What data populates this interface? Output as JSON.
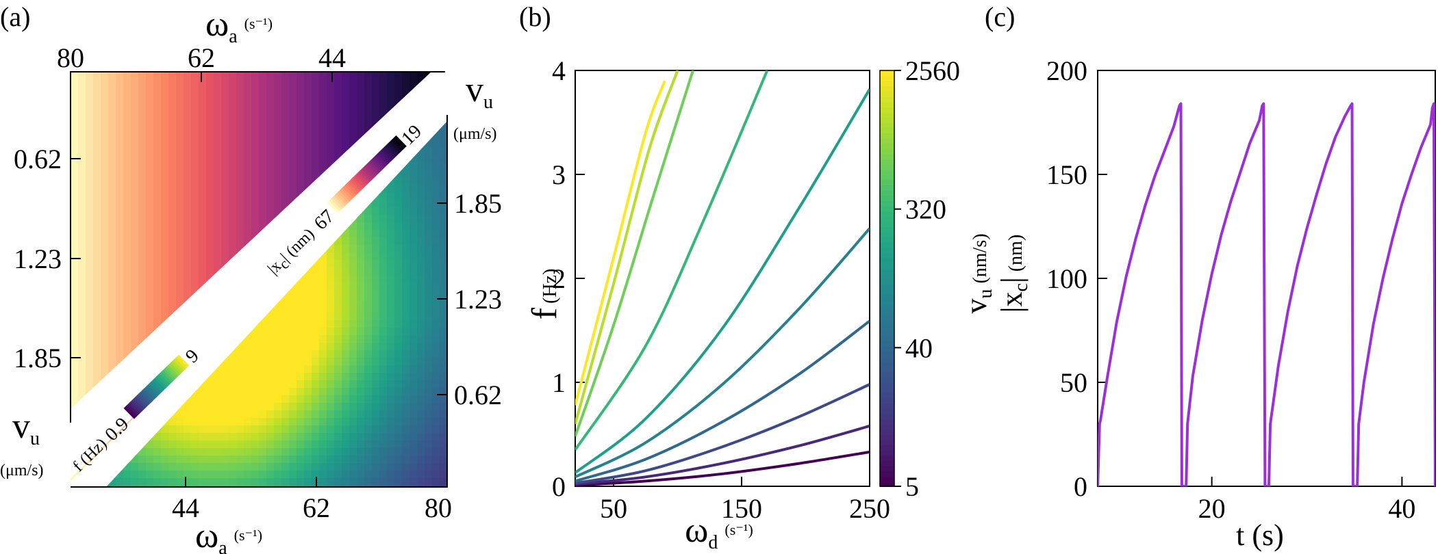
{
  "panels": {
    "a": "(a)",
    "b": "(b)",
    "c": "(c)"
  },
  "colormaps": {
    "magma": [
      "#fcfdbf",
      "#fec287",
      "#fb8761",
      "#e85362",
      "#b63679",
      "#822681",
      "#51127c",
      "#1d1147",
      "#000004"
    ],
    "viridis": [
      "#440154",
      "#482878",
      "#3e4989",
      "#31688e",
      "#26828e",
      "#1f9e89",
      "#35b779",
      "#6ece58",
      "#b5de2b",
      "#fde725"
    ]
  },
  "chart_data": [
    {
      "id": "a",
      "type": "heatmap",
      "top_axis": {
        "symbol": "ω",
        "subscript": "a",
        "unit": "(s⁻¹)",
        "ticks": [
          "80",
          "62",
          "44"
        ]
      },
      "left_axis": {
        "symbol": "v",
        "subscript": "u",
        "unit": "(μm/s)",
        "ticks": [
          "0.62",
          "1.23",
          "1.85"
        ]
      },
      "bottom_axis": {
        "symbol": "ω",
        "subscript": "a",
        "unit": "(s⁻¹)",
        "ticks": [
          "44",
          "62",
          "80"
        ]
      },
      "right_axis": {
        "symbol": "v",
        "subscript": "u",
        "unit": "(μm/s)",
        "ticks": [
          "1.85",
          "1.23",
          "0.62"
        ]
      },
      "upper_triangle": {
        "quantity": "|xc|",
        "colormap": "magma",
        "colorbar_label": "|x",
        "colorbar_label_sub": "c",
        "colorbar_label_rest": "| (nm)",
        "range": [
          "67",
          "19"
        ]
      },
      "lower_triangle": {
        "quantity": "f",
        "colormap": "viridis",
        "colorbar_label": "f (Hz)",
        "range": [
          "0.9",
          "9"
        ]
      }
    },
    {
      "id": "b",
      "type": "line",
      "xlabel": {
        "symbol": "ω",
        "subscript": "d",
        "unit": "(s⁻¹)"
      },
      "ylabel": {
        "symbol": "f",
        "unit": "(Hz)"
      },
      "xlim": [
        20,
        250
      ],
      "ylim": [
        0,
        4
      ],
      "xticks": [
        50,
        150,
        250
      ],
      "yticks": [
        0,
        1,
        2,
        3,
        4
      ],
      "colorbar": {
        "colormap": "viridis",
        "scale": "log",
        "ticks": [
          "5",
          "40",
          "320",
          "2560"
        ],
        "range": [
          5,
          2560
        ],
        "label_line1": {
          "symbol": "v",
          "subscript": "u",
          "unit": "(nm/s)"
        },
        "label_line2": {
          "symbol": "|x",
          "subscript": "c",
          "rest": "|",
          "unit": "(nm)"
        }
      },
      "series": [
        {
          "vu": 5,
          "x": [
            20,
            75,
            135,
            195,
            250
          ],
          "y": [
            0.01,
            0.05,
            0.12,
            0.22,
            0.33
          ]
        },
        {
          "vu": 10,
          "x": [
            20,
            75,
            135,
            195,
            250
          ],
          "y": [
            0.02,
            0.09,
            0.22,
            0.39,
            0.58
          ]
        },
        {
          "vu": 20,
          "x": [
            20,
            75,
            135,
            195,
            250
          ],
          "y": [
            0.03,
            0.15,
            0.38,
            0.67,
            0.98
          ]
        },
        {
          "vu": 40,
          "x": [
            20,
            75,
            135,
            195,
            250
          ],
          "y": [
            0.05,
            0.26,
            0.62,
            1.08,
            1.59
          ]
        },
        {
          "vu": 80,
          "x": [
            20,
            75,
            135,
            195,
            250
          ],
          "y": [
            0.09,
            0.42,
            0.98,
            1.71,
            2.48
          ]
        },
        {
          "vu": 160,
          "x": [
            20,
            75,
            135,
            195,
            250
          ],
          "y": [
            0.13,
            0.65,
            1.52,
            2.68,
            3.82
          ]
        },
        {
          "vu": 320,
          "x": [
            20,
            75,
            120,
            170
          ],
          "y": [
            0.35,
            1.35,
            2.55,
            4.0
          ]
        },
        {
          "vu": 640,
          "x": [
            20,
            50,
            80,
            112
          ],
          "y": [
            0.48,
            1.55,
            2.75,
            4.0
          ]
        },
        {
          "vu": 1280,
          "x": [
            20,
            50,
            78,
            100
          ],
          "y": [
            0.6,
            1.95,
            3.25,
            4.0
          ]
        },
        {
          "vu": 2560,
          "x": [
            20,
            50,
            75,
            90
          ],
          "y": [
            0.78,
            2.2,
            3.4,
            3.9
          ]
        }
      ]
    },
    {
      "id": "c",
      "type": "line",
      "xlabel": "t (s)",
      "ylabel": "",
      "xlim": [
        8,
        43.5
      ],
      "ylim": [
        0,
        200
      ],
      "xticks": [
        20,
        40
      ],
      "yticks": [
        0,
        50,
        100,
        150,
        200
      ],
      "series": [
        {
          "color": "#9b30d9",
          "x": [
            8.0,
            8.2,
            8.3,
            9,
            10,
            11,
            12,
            13,
            14,
            15,
            16,
            16.6,
            16.75,
            16.85,
            17.1,
            17.3,
            17.45,
            18,
            19,
            20,
            21,
            22,
            23,
            24,
            25,
            25.3,
            25.45,
            25.6,
            25.85,
            26.0,
            26.15,
            27,
            28,
            29,
            30,
            31,
            32,
            33,
            34,
            34.6,
            34.75,
            34.85,
            35.1,
            35.3,
            35.45,
            36,
            37,
            38,
            39,
            40,
            41,
            42,
            43,
            43.2,
            43.35,
            43.5
          ],
          "y": [
            0,
            30,
            32,
            52,
            79,
            101,
            119,
            135,
            149,
            161,
            173,
            183,
            184,
            0,
            0,
            0,
            30,
            53,
            80,
            102,
            121,
            137,
            151,
            165,
            176,
            183,
            184,
            0,
            0,
            0,
            30,
            58,
            84,
            106,
            124,
            140,
            155,
            168,
            178,
            183,
            184,
            0,
            0,
            0,
            30,
            50,
            78,
            100,
            119,
            136,
            150,
            163,
            174,
            182,
            184,
            0
          ]
        }
      ]
    }
  ]
}
